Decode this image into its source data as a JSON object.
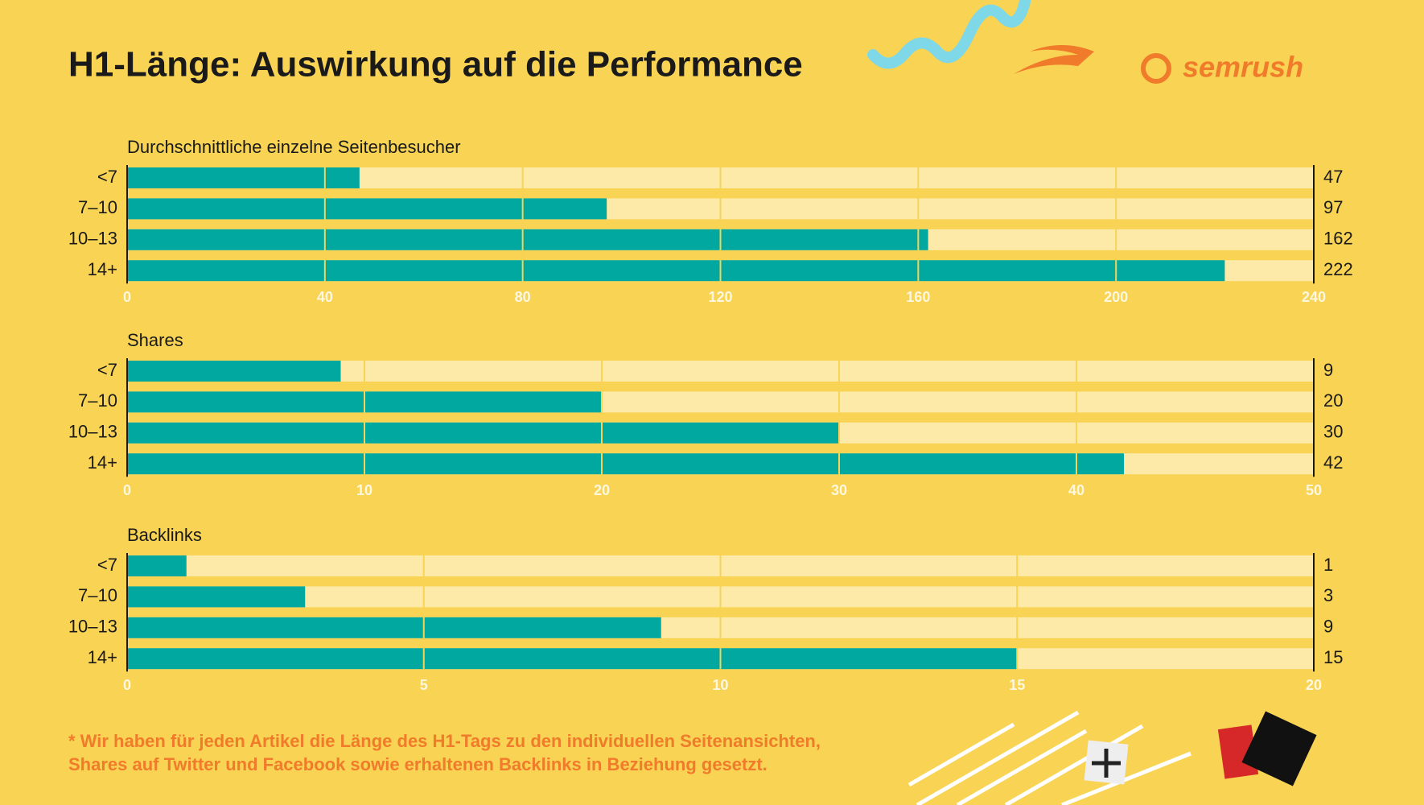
{
  "title": "H1-Länge: Auswirkung auf die Performance",
  "logo": "semrush",
  "footnote": [
    "* Wir haben für jeden Artikel die Länge des H1-Tags zu den individuellen Seitenansichten,",
    "Shares auf Twitter und Facebook sowie erhaltenen Backlinks in Beziehung gesetzt."
  ],
  "chart_data": [
    {
      "type": "bar",
      "orientation": "horizontal",
      "title": "Durchschnittliche einzelne Seitenbesucher",
      "categories": [
        "<7",
        "7–10",
        "10–13",
        "14+"
      ],
      "values": [
        47,
        97,
        162,
        222
      ],
      "color": "#00a8a0",
      "track_color": "#fde9a8",
      "xlim": [
        0,
        240
      ],
      "xticks": [
        0,
        40,
        80,
        120,
        160,
        200,
        240
      ],
      "grid": true
    },
    {
      "type": "bar",
      "orientation": "horizontal",
      "title": "Shares",
      "categories": [
        "<7",
        "7–10",
        "10–13",
        "14+"
      ],
      "values": [
        9,
        20,
        30,
        42
      ],
      "color": "#00a8a0",
      "track_color": "#fde9a8",
      "xlim": [
        0,
        50
      ],
      "xticks": [
        0,
        10,
        20,
        30,
        40,
        50
      ],
      "grid": true
    },
    {
      "type": "bar",
      "orientation": "horizontal",
      "title": "Backlinks",
      "categories": [
        "<7",
        "7–10",
        "10–13",
        "14+"
      ],
      "values": [
        1,
        3,
        9,
        15
      ],
      "color": "#00a8a0",
      "track_color": "#fde9a8",
      "xlim": [
        0,
        20
      ],
      "xticks": [
        0,
        5,
        10,
        15,
        20
      ],
      "grid": true
    }
  ]
}
